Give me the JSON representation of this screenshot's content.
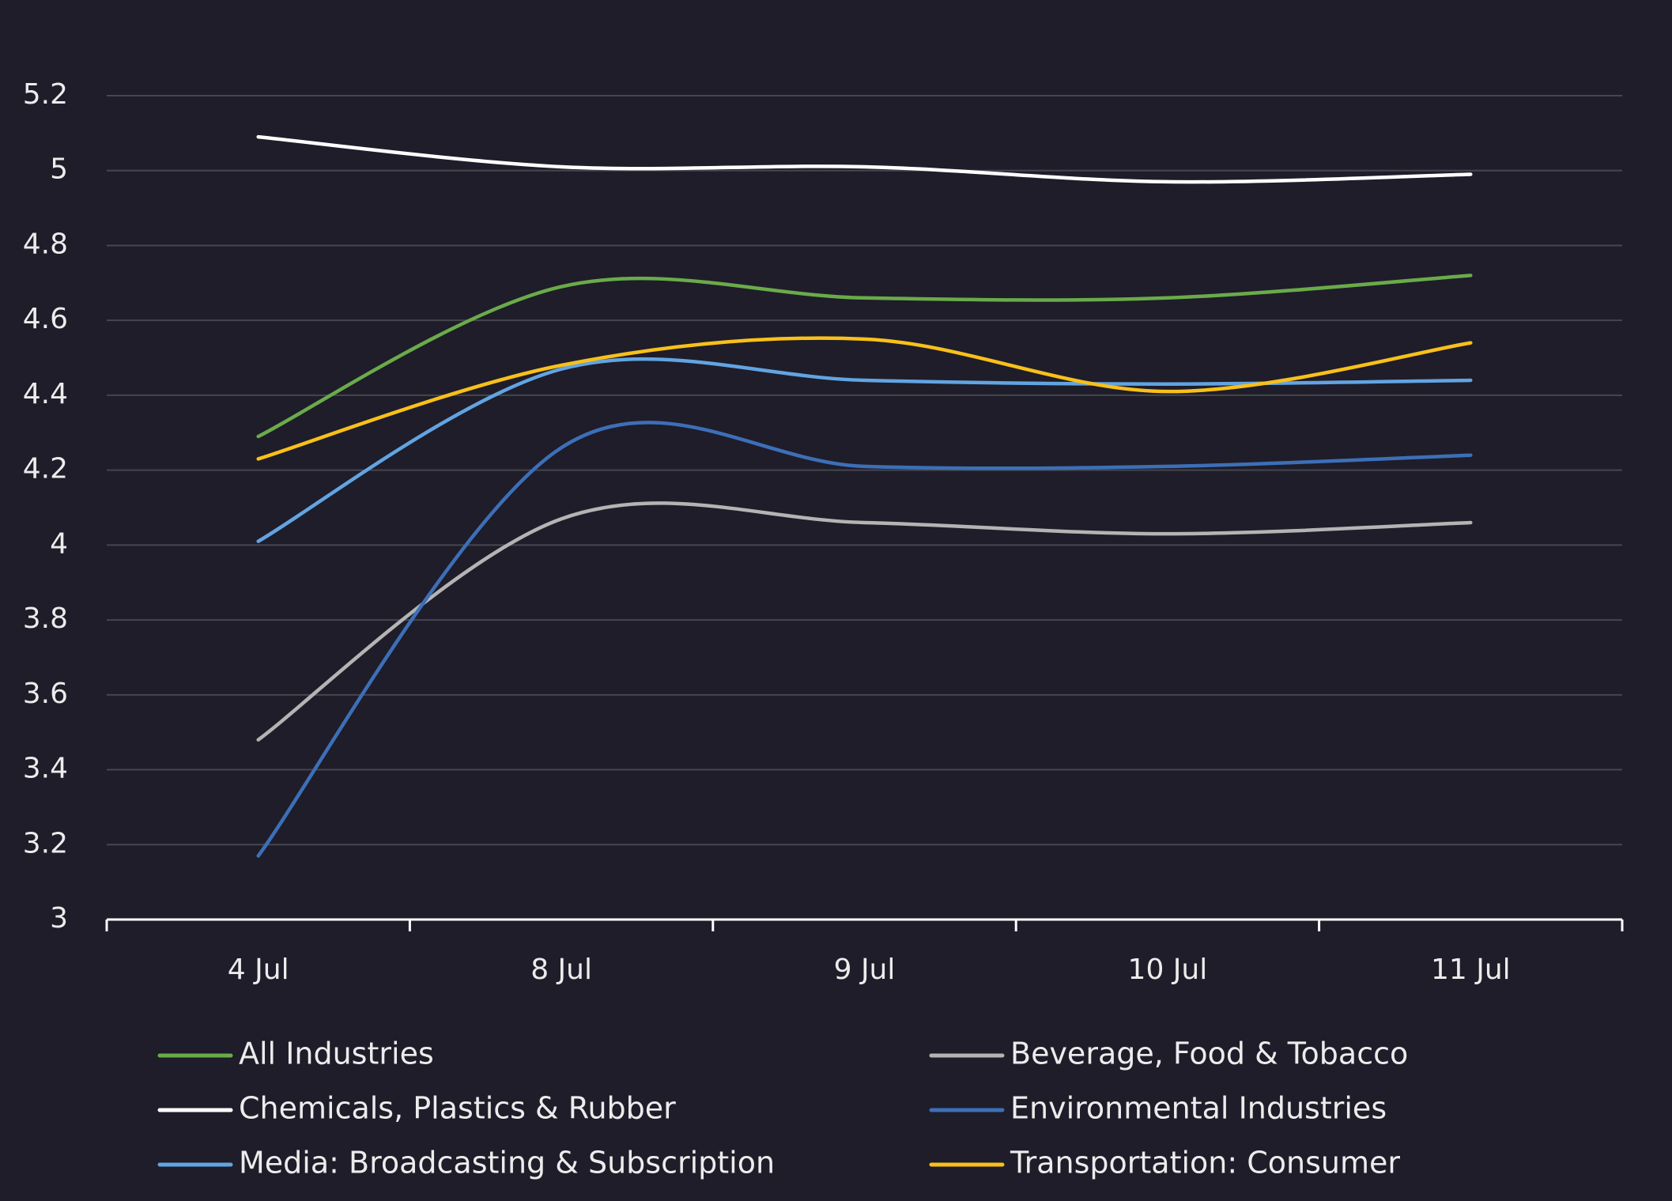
{
  "chart_data": {
    "type": "line",
    "title": "",
    "xlabel": "",
    "ylabel": "",
    "categories": [
      "4 Jul",
      "8 Jul",
      "9 Jul",
      "10 Jul",
      "11 Jul"
    ],
    "ylim": [
      3,
      5.2
    ],
    "yticks": [
      "3",
      "3.2",
      "3.4",
      "3.6",
      "3.8",
      "4",
      "4.2",
      "4.4",
      "4.6",
      "4.8",
      "5",
      "5.2"
    ],
    "grid": true,
    "legend_position": "bottom",
    "series": [
      {
        "name": "All Industries",
        "color": "#6aab4a",
        "values": [
          4.29,
          4.69,
          4.66,
          4.66,
          4.72
        ]
      },
      {
        "name": "Beverage, Food & Tobacco",
        "color": "#b4b4b4",
        "values": [
          3.48,
          4.07,
          4.06,
          4.03,
          4.06
        ]
      },
      {
        "name": "Chemicals, Plastics & Rubber",
        "color": "#ffffff",
        "values": [
          5.09,
          5.01,
          5.01,
          4.97,
          4.99
        ]
      },
      {
        "name": "Environmental Industries",
        "color": "#3d6fb8",
        "values": [
          3.17,
          4.26,
          4.21,
          4.21,
          4.24
        ]
      },
      {
        "name": "Media: Broadcasting & Subscription",
        "color": "#62a4e2",
        "values": [
          4.01,
          4.47,
          4.44,
          4.43,
          4.44
        ]
      },
      {
        "name": "Transportation: Consumer",
        "color": "#f8c01a",
        "values": [
          4.23,
          4.48,
          4.55,
          4.41,
          4.54
        ]
      }
    ]
  }
}
